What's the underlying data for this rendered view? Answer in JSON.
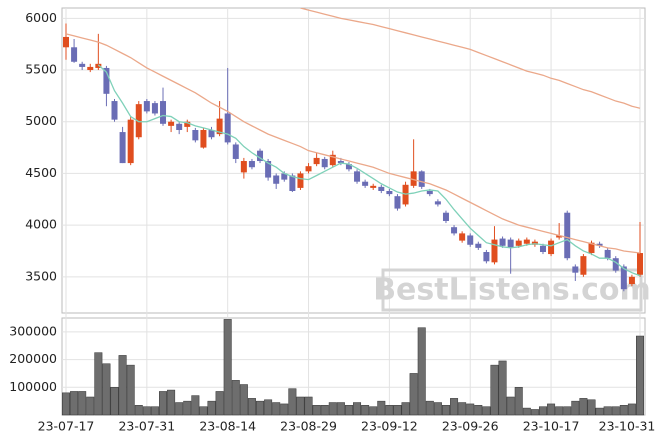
{
  "chart_data": [
    {
      "type": "candlestick",
      "up_color": "#e04e1f",
      "down_color": "#6a6db5",
      "open": [
        5720,
        5720,
        5560,
        5500,
        5520,
        5520,
        5200,
        4900,
        4600,
        4850,
        5200,
        5180,
        5200,
        4960,
        4980,
        4950,
        4920,
        4750,
        4920,
        4880,
        5080,
        4780,
        4510,
        4620,
        4720,
        4620,
        4480,
        4500,
        4480,
        4360,
        4520,
        4590,
        4640,
        4580,
        4620,
        4590,
        4520,
        4420,
        4360,
        4370,
        4330,
        4280,
        4200,
        4380,
        4520,
        4330,
        4230,
        4120,
        3980,
        3850,
        3900,
        3820,
        3740,
        3640,
        3870,
        3860,
        3800,
        3820,
        3810,
        3800,
        3720,
        3880,
        4120,
        3600,
        3520,
        3730,
        3820,
        3760,
        3680,
        3600,
        3430,
        3520
      ],
      "high": [
        5950,
        5800,
        5580,
        5560,
        5850,
        5540,
        5220,
        4950,
        5050,
        5200,
        5220,
        5200,
        5330,
        5020,
        5000,
        5020,
        4940,
        4940,
        4950,
        5200,
        5520,
        4800,
        4650,
        4640,
        4740,
        4640,
        4500,
        4520,
        4500,
        4520,
        4600,
        4700,
        4660,
        4720,
        4650,
        4610,
        4540,
        4440,
        4400,
        4390,
        4350,
        4300,
        4420,
        4830,
        4530,
        4350,
        4250,
        4140,
        4000,
        3940,
        3920,
        3840,
        3760,
        3990,
        3890,
        3880,
        3870,
        3880,
        3860,
        3820,
        3870,
        4020,
        4140,
        3620,
        3720,
        3850,
        3840,
        3780,
        3700,
        3620,
        3520,
        4030
      ],
      "low": [
        5600,
        5570,
        5500,
        5480,
        5500,
        5150,
        5000,
        4600,
        4580,
        4830,
        5080,
        5060,
        4960,
        4900,
        4880,
        4900,
        4800,
        4740,
        4830,
        4860,
        4780,
        4600,
        4450,
        4540,
        4600,
        4430,
        4350,
        4420,
        4320,
        4340,
        4500,
        4570,
        4540,
        4560,
        4580,
        4520,
        4400,
        4360,
        4340,
        4310,
        4280,
        4140,
        4180,
        4360,
        4350,
        4280,
        4180,
        4020,
        3900,
        3830,
        3790,
        3760,
        3630,
        3620,
        3780,
        3530,
        3780,
        3800,
        3790,
        3720,
        3700,
        3860,
        3660,
        3460,
        3500,
        3710,
        3780,
        3660,
        3540,
        3360,
        3410,
        3500
      ],
      "close": [
        5820,
        5580,
        5530,
        5530,
        5560,
        5270,
        5020,
        4600,
        5020,
        5170,
        5100,
        5080,
        4980,
        5000,
        4920,
        5000,
        4820,
        4920,
        4850,
        5030,
        4800,
        4640,
        4620,
        4560,
        4620,
        4460,
        4400,
        4440,
        4330,
        4500,
        4570,
        4650,
        4560,
        4680,
        4600,
        4540,
        4420,
        4380,
        4380,
        4330,
        4300,
        4160,
        4390,
        4520,
        4370,
        4300,
        4200,
        4040,
        3920,
        3920,
        3810,
        3780,
        3650,
        3860,
        3800,
        3780,
        3850,
        3860,
        3840,
        3740,
        3850,
        3900,
        3680,
        3540,
        3700,
        3830,
        3800,
        3680,
        3560,
        3380,
        3500,
        3730
      ],
      "lines": [
        {
          "color": "#7fd1b9",
          "values": [
            null,
            null,
            null,
            null,
            5550,
            5480,
            5300,
            5180,
            5050,
            5000,
            5000,
            5030,
            5060,
            5050,
            5000,
            4990,
            4960,
            4940,
            4920,
            4900,
            4880,
            4840,
            4760,
            4700,
            4650,
            4600,
            4560,
            4500,
            4470,
            4450,
            4440,
            4480,
            4520,
            4560,
            4600,
            4590,
            4550,
            4500,
            4450,
            4400,
            4360,
            4320,
            4300,
            4310,
            4330,
            4340,
            4330,
            4250,
            4150,
            4060,
            3970,
            3900,
            3830,
            3810,
            3790,
            3780,
            3790,
            3810,
            3820,
            3810,
            3800,
            3830,
            3860,
            3800,
            3750,
            3720,
            3680,
            3680,
            3640,
            3580,
            3540,
            3510
          ]
        },
        {
          "color": "#eba88a",
          "values": [
            5850,
            5830,
            5810,
            5790,
            5770,
            5740,
            5700,
            5660,
            5620,
            5570,
            5520,
            5480,
            5440,
            5400,
            5360,
            5320,
            5280,
            5230,
            5180,
            5140,
            5100,
            5050,
            5000,
            4960,
            4920,
            4880,
            4850,
            4820,
            4790,
            4760,
            4720,
            4700,
            4680,
            4660,
            4640,
            4620,
            4600,
            4580,
            4560,
            4530,
            4500,
            4480,
            4460,
            4440,
            4420,
            4400,
            4370,
            4340,
            4300,
            4260,
            4220,
            4180,
            4140,
            4100,
            4060,
            4030,
            4000,
            3980,
            3960,
            3940,
            3920,
            3900,
            3880,
            3860,
            3840,
            3820,
            3800,
            3780,
            3770,
            3750,
            3740,
            3730
          ]
        },
        {
          "color": "#eba88a",
          "values": [
            null,
            null,
            null,
            null,
            null,
            null,
            null,
            null,
            null,
            null,
            null,
            null,
            null,
            null,
            null,
            null,
            null,
            null,
            null,
            null,
            null,
            null,
            null,
            null,
            null,
            null,
            null,
            null,
            null,
            6100,
            6080,
            6060,
            6040,
            6020,
            6000,
            5985,
            5970,
            5955,
            5940,
            5920,
            5900,
            5880,
            5860,
            5840,
            5820,
            5800,
            5780,
            5760,
            5740,
            5720,
            5700,
            5670,
            5640,
            5610,
            5580,
            5550,
            5520,
            5490,
            5470,
            5450,
            5420,
            5400,
            5370,
            5340,
            5310,
            5290,
            5260,
            5230,
            5200,
            5180,
            5150,
            5130
          ]
        }
      ],
      "ylim": [
        3150,
        6100
      ],
      "yticks": [
        3500,
        4000,
        4500,
        5000,
        5500,
        6000
      ],
      "grid": true,
      "watermark": "BestListens.com"
    },
    {
      "type": "bar",
      "color": "#6e6e6e",
      "categories": [
        "23-07-17",
        null,
        null,
        null,
        null,
        null,
        null,
        null,
        null,
        null,
        "23-07-31",
        null,
        null,
        null,
        null,
        null,
        null,
        null,
        null,
        null,
        "23-08-14",
        null,
        null,
        null,
        null,
        null,
        null,
        null,
        null,
        null,
        "23-08-29",
        null,
        null,
        null,
        null,
        null,
        null,
        null,
        null,
        null,
        "23-09-12",
        null,
        null,
        null,
        null,
        null,
        null,
        null,
        null,
        null,
        "23-09-26",
        null,
        null,
        null,
        null,
        null,
        null,
        null,
        null,
        null,
        "23-10-17",
        null,
        null,
        null,
        null,
        null,
        null,
        null,
        null,
        null,
        null,
        "23-10-31"
      ],
      "values": [
        80000,
        85000,
        85000,
        65000,
        225000,
        185000,
        100000,
        215000,
        180000,
        35000,
        30000,
        30000,
        85000,
        90000,
        45000,
        50000,
        70000,
        30000,
        50000,
        85000,
        345000,
        125000,
        110000,
        60000,
        50000,
        55000,
        45000,
        40000,
        95000,
        65000,
        65000,
        35000,
        35000,
        45000,
        45000,
        35000,
        45000,
        35000,
        30000,
        50000,
        35000,
        35000,
        45000,
        150000,
        315000,
        50000,
        45000,
        35000,
        60000,
        45000,
        40000,
        35000,
        30000,
        180000,
        195000,
        65000,
        100000,
        25000,
        20000,
        30000,
        40000,
        30000,
        30000,
        50000,
        60000,
        55000,
        25000,
        30000,
        30000,
        35000,
        40000,
        285000
      ],
      "ylim": [
        0,
        350000
      ],
      "yticks": [
        100000,
        200000,
        300000
      ],
      "grid": true
    }
  ]
}
